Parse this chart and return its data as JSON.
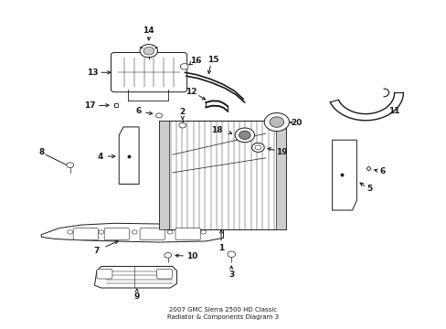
{
  "title": "2007 GMC Sierra 2500 HD Classic\nRadiator & Components Diagram 3",
  "bg_color": "#ffffff",
  "line_color": "#1a1a1a",
  "text_color": "#1a1a1a",
  "fig_width": 4.89,
  "fig_height": 3.6,
  "dpi": 100
}
